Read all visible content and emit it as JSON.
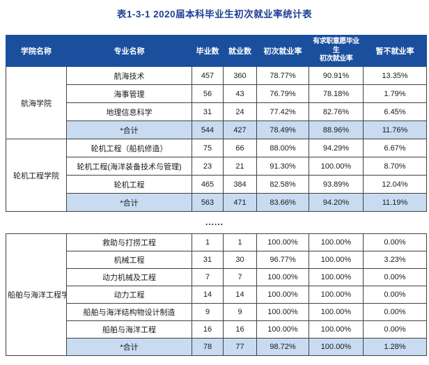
{
  "title": "表1-3-1   2020届本科毕业生初次就业率统计表",
  "separator": "......",
  "colors": {
    "header_bg": "#1a4f9d",
    "title_text": "#1c3e95",
    "total_row_bg": "#c8dbf1",
    "border": "#404040"
  },
  "columns": [
    "学院名称",
    "专业名称",
    "毕业数",
    "就业数",
    "初次就业率",
    "有求职意愿毕业生\n初次就业率",
    "暂不就业率"
  ],
  "tables": [
    {
      "has_header": true,
      "groups": [
        {
          "college": "航海学院",
          "rows": [
            {
              "major": "航海技术",
              "graduates": "457",
              "employed": "360",
              "initial_rate": "78.77%",
              "willing_rate": "90.91%",
              "not_employed_rate": "13.35%",
              "is_total": false
            },
            {
              "major": "海事管理",
              "graduates": "56",
              "employed": "43",
              "initial_rate": "76.79%",
              "willing_rate": "78.18%",
              "not_employed_rate": "1.79%",
              "is_total": false
            },
            {
              "major": "地理信息科学",
              "graduates": "31",
              "employed": "24",
              "initial_rate": "77.42%",
              "willing_rate": "82.76%",
              "not_employed_rate": "6.45%",
              "is_total": false
            },
            {
              "major": "*合计",
              "graduates": "544",
              "employed": "427",
              "initial_rate": "78.49%",
              "willing_rate": "88.96%",
              "not_employed_rate": "11.76%",
              "is_total": true
            }
          ]
        },
        {
          "college": "轮机工程学院",
          "rows": [
            {
              "major": "轮机工程（船机修造）",
              "graduates": "75",
              "employed": "66",
              "initial_rate": "88.00%",
              "willing_rate": "94.29%",
              "not_employed_rate": "6.67%",
              "is_total": false
            },
            {
              "major": "轮机工程(海洋装备技术与管理)",
              "graduates": "23",
              "employed": "21",
              "initial_rate": "91.30%",
              "willing_rate": "100.00%",
              "not_employed_rate": "8.70%",
              "is_total": false
            },
            {
              "major": "轮机工程",
              "graduates": "465",
              "employed": "384",
              "initial_rate": "82.58%",
              "willing_rate": "93.89%",
              "not_employed_rate": "12.04%",
              "is_total": false
            },
            {
              "major": "*合计",
              "graduates": "563",
              "employed": "471",
              "initial_rate": "83.66%",
              "willing_rate": "94.20%",
              "not_employed_rate": "11.19%",
              "is_total": true
            }
          ]
        }
      ]
    },
    {
      "has_header": false,
      "groups": [
        {
          "college": "船舶与海洋工程学院",
          "rows": [
            {
              "major": "救助与打捞工程",
              "graduates": "1",
              "employed": "1",
              "initial_rate": "100.00%",
              "willing_rate": "100.00%",
              "not_employed_rate": "0.00%",
              "is_total": false
            },
            {
              "major": "机械工程",
              "graduates": "31",
              "employed": "30",
              "initial_rate": "96.77%",
              "willing_rate": "100.00%",
              "not_employed_rate": "3.23%",
              "is_total": false
            },
            {
              "major": "动力机械及工程",
              "graduates": "7",
              "employed": "7",
              "initial_rate": "100.00%",
              "willing_rate": "100.00%",
              "not_employed_rate": "0.00%",
              "is_total": false
            },
            {
              "major": "动力工程",
              "graduates": "14",
              "employed": "14",
              "initial_rate": "100.00%",
              "willing_rate": "100.00%",
              "not_employed_rate": "0.00%",
              "is_total": false
            },
            {
              "major": "船舶与海洋结构物设计制造",
              "graduates": "9",
              "employed": "9",
              "initial_rate": "100.00%",
              "willing_rate": "100.00%",
              "not_employed_rate": "0.00%",
              "is_total": false
            },
            {
              "major": "船舶与海洋工程",
              "graduates": "16",
              "employed": "16",
              "initial_rate": "100.00%",
              "willing_rate": "100.00%",
              "not_employed_rate": "0.00%",
              "is_total": false
            },
            {
              "major": "*合计",
              "graduates": "78",
              "employed": "77",
              "initial_rate": "98.72%",
              "willing_rate": "100.00%",
              "not_employed_rate": "1.28%",
              "is_total": true
            }
          ]
        }
      ]
    }
  ]
}
